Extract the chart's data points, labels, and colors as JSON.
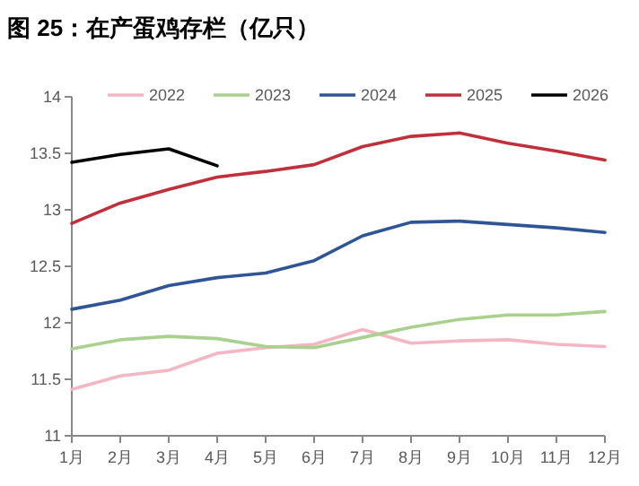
{
  "chart_data": {
    "type": "line",
    "title": "图 25：在产蛋鸡存栏（亿只）",
    "categories": [
      "1月",
      "2月",
      "3月",
      "4月",
      "5月",
      "6月",
      "7月",
      "8月",
      "9月",
      "10月",
      "11月",
      "12月"
    ],
    "ylim": [
      11,
      14
    ],
    "yticks": [
      11,
      11.5,
      12,
      12.5,
      13,
      13.5,
      14
    ],
    "legend": "top",
    "grid": false,
    "marker": "none",
    "line_style": "solid",
    "series": [
      {
        "name": "2022",
        "color": "#f4b6c2",
        "values": [
          11.41,
          11.53,
          11.58,
          11.73,
          11.78,
          11.81,
          11.94,
          11.82,
          11.84,
          11.85,
          11.81,
          11.79
        ]
      },
      {
        "name": "2023",
        "color": "#a9d18e",
        "values": [
          11.77,
          11.85,
          11.88,
          11.86,
          11.79,
          11.78,
          11.87,
          11.96,
          12.03,
          12.07,
          12.07,
          12.1
        ]
      },
      {
        "name": "2024",
        "color": "#2f5597",
        "values": [
          12.12,
          12.2,
          12.33,
          12.4,
          12.44,
          12.55,
          12.77,
          12.89,
          12.9,
          12.87,
          12.84,
          12.8
        ]
      },
      {
        "name": "2025",
        "color": "#c0303a",
        "values": [
          12.88,
          13.06,
          13.18,
          13.29,
          13.34,
          13.4,
          13.56,
          13.65,
          13.68,
          13.59,
          13.52,
          13.44
        ]
      },
      {
        "name": "2026",
        "color": "#000000",
        "values": [
          13.42,
          13.49,
          13.54,
          13.39,
          null,
          null,
          null,
          null,
          null,
          null,
          null,
          null
        ]
      }
    ]
  }
}
